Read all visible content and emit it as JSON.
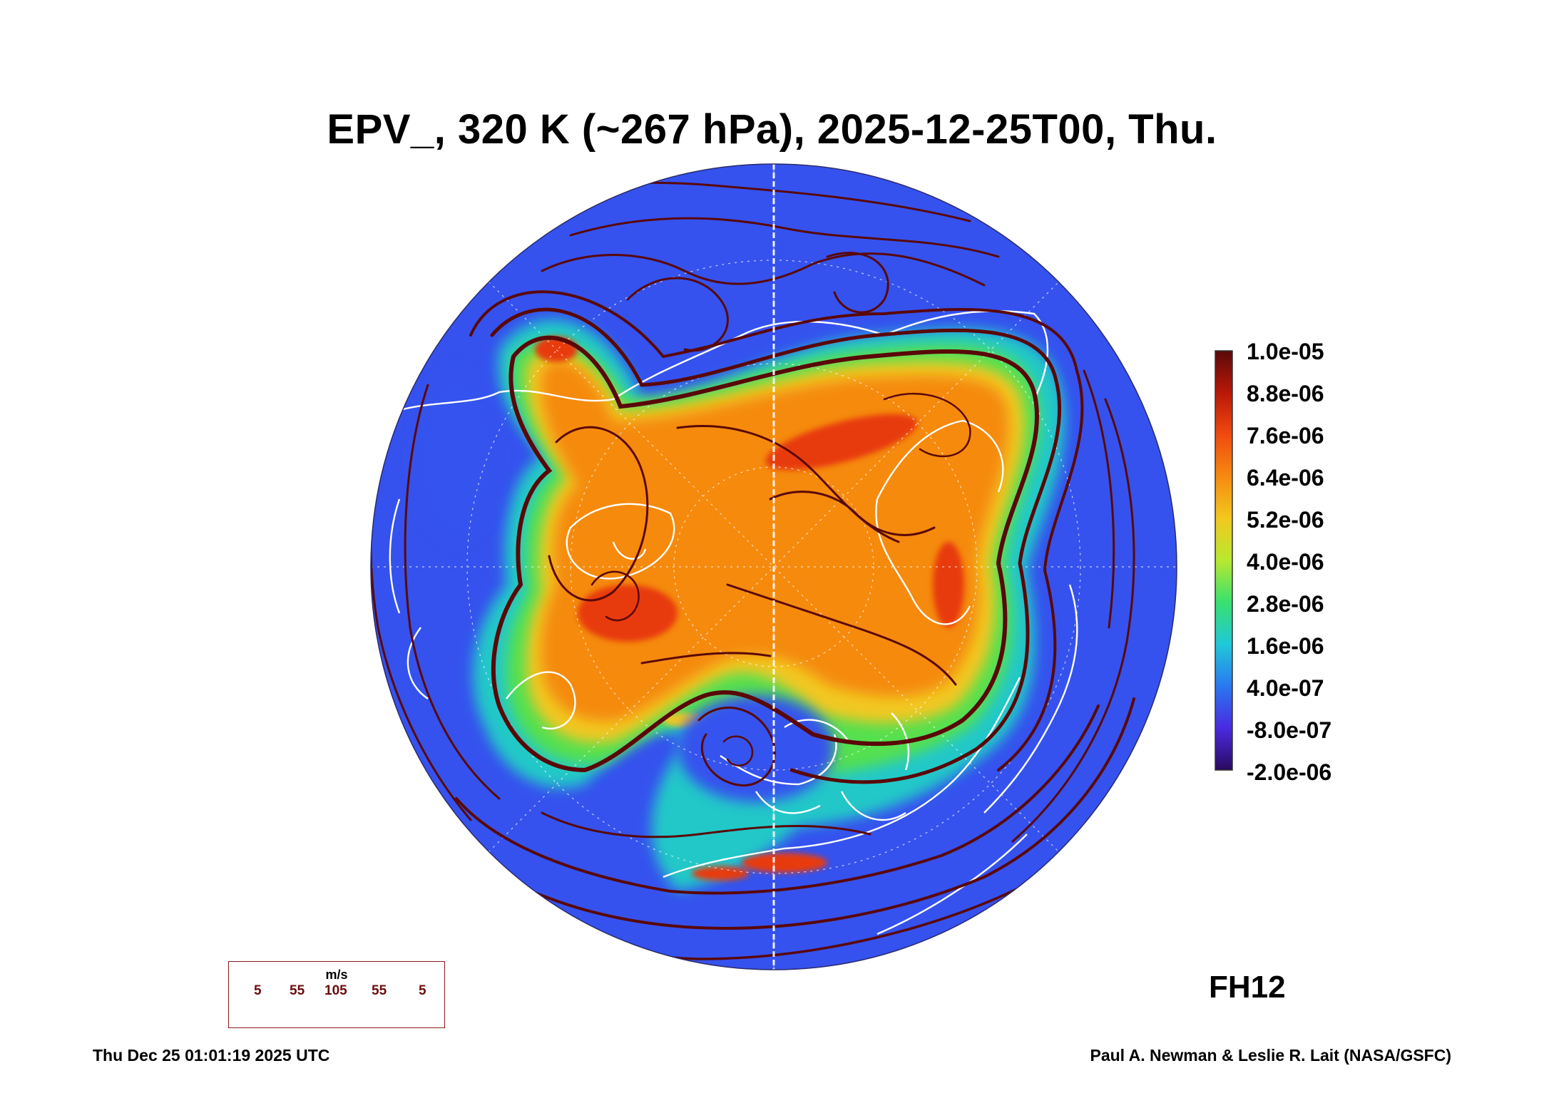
{
  "title": "EPV_, 320 K (~267 hPa), 2025-12-25T00, Thu.",
  "colorbar": {
    "labels": [
      "1.0e-05",
      "8.8e-06",
      "7.6e-06",
      "6.4e-06",
      "5.2e-06",
      "4.0e-06",
      "2.8e-06",
      "1.6e-06",
      "4.0e-07",
      "-8.0e-07",
      "-2.0e-06"
    ],
    "colors": [
      "#5a0a0a",
      "#b81808",
      "#f04a10",
      "#f58a10",
      "#f2c820",
      "#b8e830",
      "#38e070",
      "#20c8d8",
      "#2a78f0",
      "#4a2ae0",
      "#2a0a60"
    ]
  },
  "forecast_hour": "FH12",
  "wind_legend": {
    "units": "m/s",
    "speeds": [
      "5",
      "55",
      "105",
      "55",
      "5"
    ]
  },
  "footer": {
    "timestamp": "Thu Dec 25 01:01:19 2025 UTC",
    "credit": "Paul A. Newman & Leslie R. Lait (NASA/GSFC)"
  },
  "palette": {
    "streamline": "#5a0808",
    "coast": "#ffffff",
    "background_field": "#3a5af0"
  }
}
